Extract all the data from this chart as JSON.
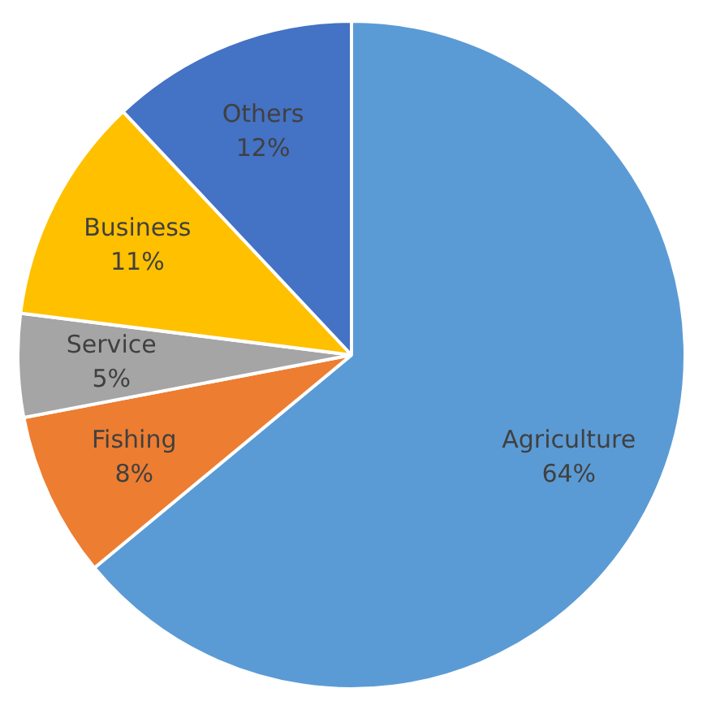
{
  "chart_data": {
    "type": "pie",
    "categories": [
      "Agriculture",
      "Fishing",
      "Service",
      "Business",
      "Others"
    ],
    "values": [
      64,
      8,
      5,
      11,
      12
    ],
    "value_labels": [
      "64%",
      "8%",
      "5%",
      "11%",
      "12%"
    ],
    "colors": [
      "#5b9bd5",
      "#ed7d31",
      "#a5a5a5",
      "#ffc000",
      "#4472c4"
    ],
    "legend": false
  }
}
